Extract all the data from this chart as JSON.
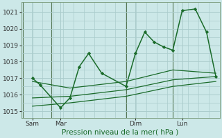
{
  "background_color": "#cce8e8",
  "grid_color": "#aacccc",
  "line_color": "#1a6b2a",
  "title": "Pression niveau de la mer( hPa )",
  "ylabel_ticks": [
    1015,
    1016,
    1017,
    1018,
    1019,
    1020,
    1021
  ],
  "ylim": [
    1014.6,
    1021.6
  ],
  "xlim": [
    -0.1,
    10.5
  ],
  "day_labels": [
    "Sam",
    "Mar",
    "Dim",
    "Lun"
  ],
  "day_positions": [
    0.5,
    2.0,
    6.0,
    8.5
  ],
  "day_vlines": [
    0.0,
    1.5,
    5.5,
    8.0
  ],
  "series": [
    {
      "x": [
        0.5,
        0.9,
        2.0,
        2.5,
        3.0,
        3.5,
        4.2,
        5.5,
        6.0,
        6.5,
        7.0,
        7.5,
        8.0,
        8.5,
        9.2,
        9.8,
        10.3
      ],
      "y": [
        1017.0,
        1016.6,
        1015.2,
        1015.8,
        1017.7,
        1018.5,
        1017.3,
        1016.5,
        1018.5,
        1019.8,
        1019.2,
        1018.9,
        1018.7,
        1021.1,
        1021.2,
        1019.8,
        1017.1
      ],
      "marker": "D",
      "markersize": 2.2,
      "linewidth": 1.1,
      "linestyle": "-"
    },
    {
      "x": [
        0.5,
        2.5,
        5.5,
        8.0,
        10.3
      ],
      "y": [
        1016.8,
        1016.4,
        1016.8,
        1017.5,
        1017.3
      ],
      "marker": null,
      "linewidth": 0.9,
      "linestyle": "-"
    },
    {
      "x": [
        0.5,
        2.5,
        5.5,
        8.0,
        10.3
      ],
      "y": [
        1015.8,
        1015.9,
        1016.3,
        1016.9,
        1017.1
      ],
      "marker": null,
      "linewidth": 0.9,
      "linestyle": "-"
    },
    {
      "x": [
        0.5,
        2.5,
        5.5,
        8.0,
        10.3
      ],
      "y": [
        1015.3,
        1015.5,
        1015.9,
        1016.5,
        1016.8
      ],
      "marker": null,
      "linewidth": 0.9,
      "linestyle": "-"
    }
  ]
}
